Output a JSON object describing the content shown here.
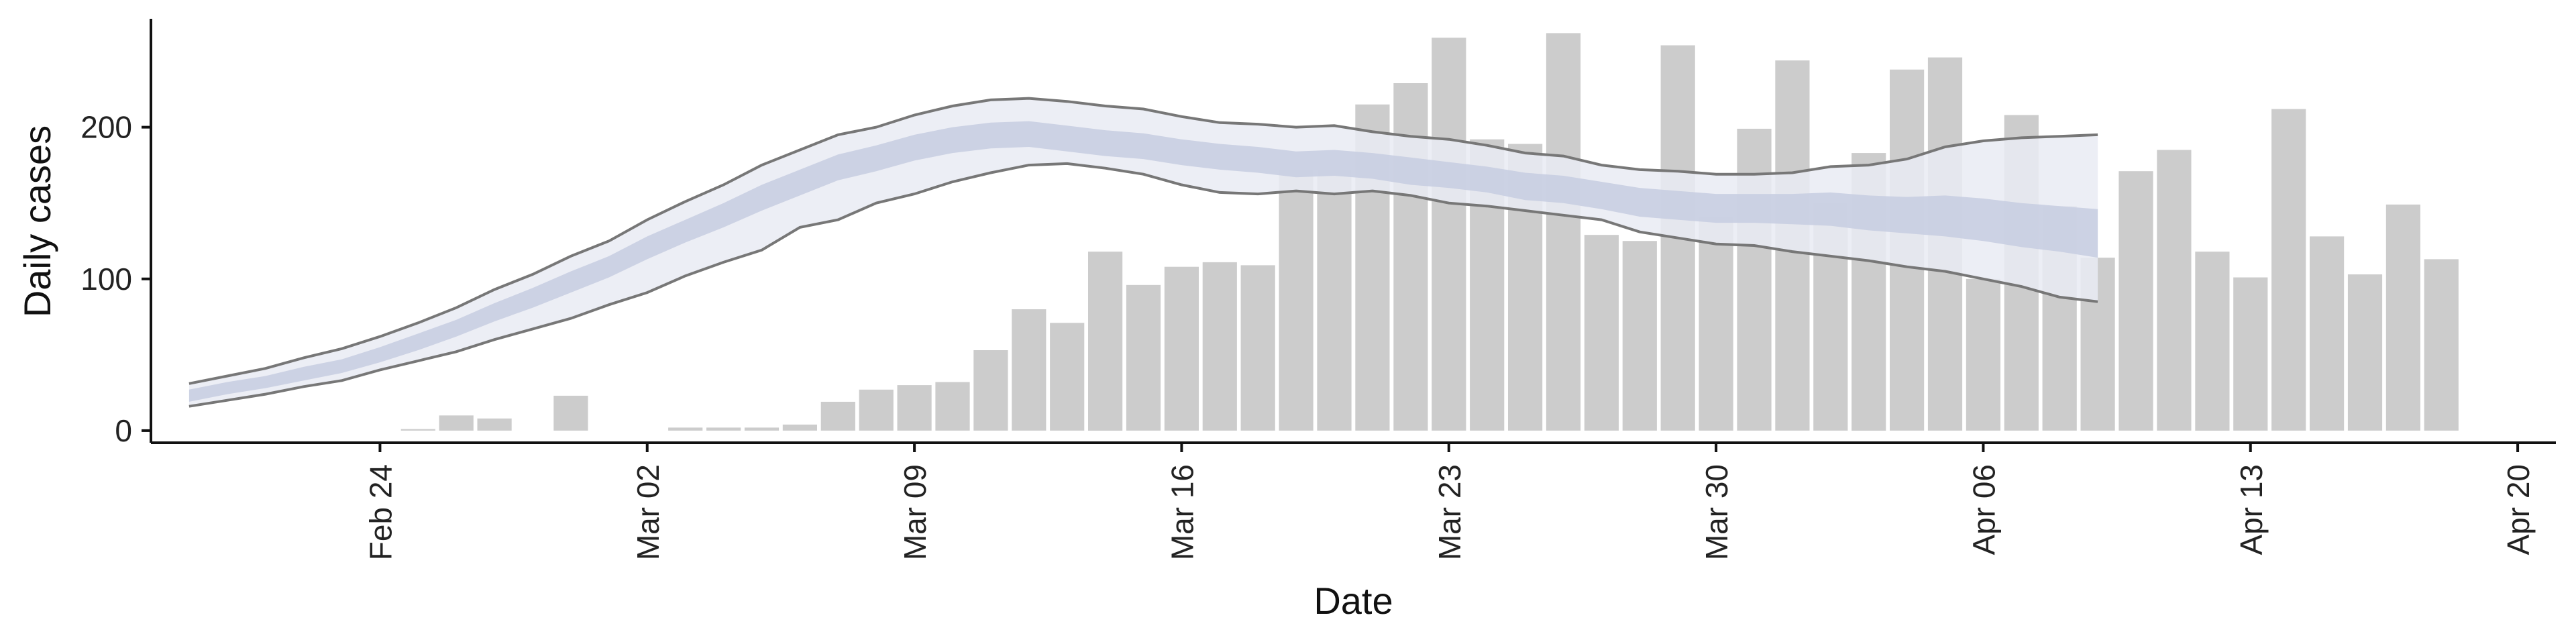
{
  "chart_data": {
    "type": "bar",
    "xlabel": "Date",
    "ylabel": "Daily cases",
    "ylim": [
      -8,
      275
    ],
    "xlim": [
      "2020-02-18",
      "2020-04-21"
    ],
    "y_ticks": [
      0,
      100,
      200
    ],
    "x_ticks": [
      {
        "date": "2020-02-24",
        "label": "Feb 24"
      },
      {
        "date": "2020-03-02",
        "label": "Mar 02"
      },
      {
        "date": "2020-03-09",
        "label": "Mar 09"
      },
      {
        "date": "2020-03-16",
        "label": "Mar 16"
      },
      {
        "date": "2020-03-23",
        "label": "Mar 23"
      },
      {
        "date": "2020-03-30",
        "label": "Mar 30"
      },
      {
        "date": "2020-04-06",
        "label": "Apr 06"
      },
      {
        "date": "2020-04-13",
        "label": "Apr 13"
      },
      {
        "date": "2020-04-20",
        "label": "Apr 20"
      }
    ],
    "grid": false,
    "legend": "none",
    "colors": {
      "bars": "#cccccc",
      "band_outer": "#e9ebf3",
      "band_inner": "#c7cde0",
      "band_edge": "#777777"
    },
    "bars": {
      "name": "Daily cases",
      "dates": [
        "2020-02-25",
        "2020-02-26",
        "2020-02-27",
        "2020-02-28",
        "2020-02-29",
        "2020-03-01",
        "2020-03-02",
        "2020-03-03",
        "2020-03-04",
        "2020-03-05",
        "2020-03-06",
        "2020-03-07",
        "2020-03-08",
        "2020-03-09",
        "2020-03-10",
        "2020-03-11",
        "2020-03-12",
        "2020-03-13",
        "2020-03-14",
        "2020-03-15",
        "2020-03-16",
        "2020-03-17",
        "2020-03-18",
        "2020-03-19",
        "2020-03-20",
        "2020-03-21",
        "2020-03-22",
        "2020-03-23",
        "2020-03-24",
        "2020-03-25",
        "2020-03-26",
        "2020-03-27",
        "2020-03-28",
        "2020-03-29",
        "2020-03-30",
        "2020-03-31",
        "2020-04-01",
        "2020-04-02",
        "2020-04-03",
        "2020-04-04",
        "2020-04-05",
        "2020-04-06",
        "2020-04-07",
        "2020-04-08",
        "2020-04-09",
        "2020-04-10",
        "2020-04-11",
        "2020-04-12",
        "2020-04-13",
        "2020-04-14",
        "2020-04-15",
        "2020-04-16",
        "2020-04-17",
        "2020-04-18",
        "2020-04-19"
      ],
      "values": [
        1,
        10,
        8,
        0,
        23,
        0,
        0,
        2,
        2,
        2,
        4,
        19,
        27,
        30,
        32,
        53,
        80,
        71,
        118,
        96,
        108,
        111,
        109,
        172,
        172,
        215,
        229,
        259,
        192,
        189,
        262,
        129,
        125,
        254,
        141,
        199,
        244,
        150,
        183,
        238,
        246,
        100,
        208,
        148,
        114,
        171,
        185,
        118,
        101,
        212,
        128,
        103,
        149,
        113,
        0
      ]
    },
    "band": {
      "dates": [
        "2020-02-19",
        "2020-02-20",
        "2020-02-21",
        "2020-02-22",
        "2020-02-23",
        "2020-02-24",
        "2020-02-25",
        "2020-02-26",
        "2020-02-27",
        "2020-02-28",
        "2020-02-29",
        "2020-03-01",
        "2020-03-02",
        "2020-03-03",
        "2020-03-04",
        "2020-03-05",
        "2020-03-06",
        "2020-03-07",
        "2020-03-08",
        "2020-03-09",
        "2020-03-10",
        "2020-03-11",
        "2020-03-12",
        "2020-03-13",
        "2020-03-14",
        "2020-03-15",
        "2020-03-16",
        "2020-03-17",
        "2020-03-18",
        "2020-03-19",
        "2020-03-20",
        "2020-03-21",
        "2020-03-22",
        "2020-03-23",
        "2020-03-24",
        "2020-03-25",
        "2020-03-26",
        "2020-03-27",
        "2020-03-28",
        "2020-03-29",
        "2020-03-30",
        "2020-03-31",
        "2020-04-01",
        "2020-04-02",
        "2020-04-03",
        "2020-04-04",
        "2020-04-05",
        "2020-04-06",
        "2020-04-07",
        "2020-04-08",
        "2020-04-09"
      ],
      "upper": [
        31,
        36,
        41,
        48,
        54,
        62,
        71,
        81,
        93,
        103,
        115,
        125,
        139,
        151,
        162,
        175,
        185,
        195,
        200,
        208,
        214,
        218,
        219,
        217,
        214,
        212,
        207,
        203,
        202,
        200,
        201,
        197,
        194,
        192,
        188,
        183,
        181,
        175,
        172,
        171,
        169,
        169,
        170,
        174,
        175,
        179,
        187,
        191,
        193,
        194,
        195
      ],
      "inner_upper": [
        27,
        32,
        36,
        42,
        47,
        55,
        64,
        73,
        84,
        94,
        105,
        115,
        128,
        139,
        150,
        162,
        172,
        182,
        188,
        195,
        200,
        203,
        204,
        201,
        198,
        196,
        192,
        189,
        187,
        184,
        185,
        183,
        180,
        177,
        174,
        170,
        168,
        164,
        160,
        158,
        156,
        156,
        156,
        157,
        155,
        154,
        155,
        153,
        150,
        148,
        146
      ],
      "inner_lower": [
        19,
        24,
        28,
        33,
        38,
        45,
        53,
        62,
        72,
        81,
        91,
        101,
        113,
        124,
        134,
        145,
        155,
        165,
        171,
        178,
        183,
        186,
        187,
        184,
        181,
        179,
        175,
        172,
        170,
        167,
        168,
        166,
        162,
        160,
        157,
        152,
        150,
        146,
        141,
        139,
        137,
        137,
        136,
        135,
        132,
        130,
        128,
        125,
        121,
        118,
        114
      ],
      "lower": [
        16,
        20,
        24,
        29,
        33,
        40,
        46,
        52,
        60,
        67,
        74,
        83,
        91,
        102,
        111,
        119,
        134,
        139,
        150,
        156,
        164,
        170,
        175,
        176,
        173,
        169,
        162,
        157,
        156,
        158,
        156,
        158,
        155,
        150,
        148,
        145,
        142,
        139,
        131,
        127,
        123,
        122,
        118,
        115,
        112,
        108,
        105,
        100,
        95,
        88,
        85
      ]
    }
  }
}
